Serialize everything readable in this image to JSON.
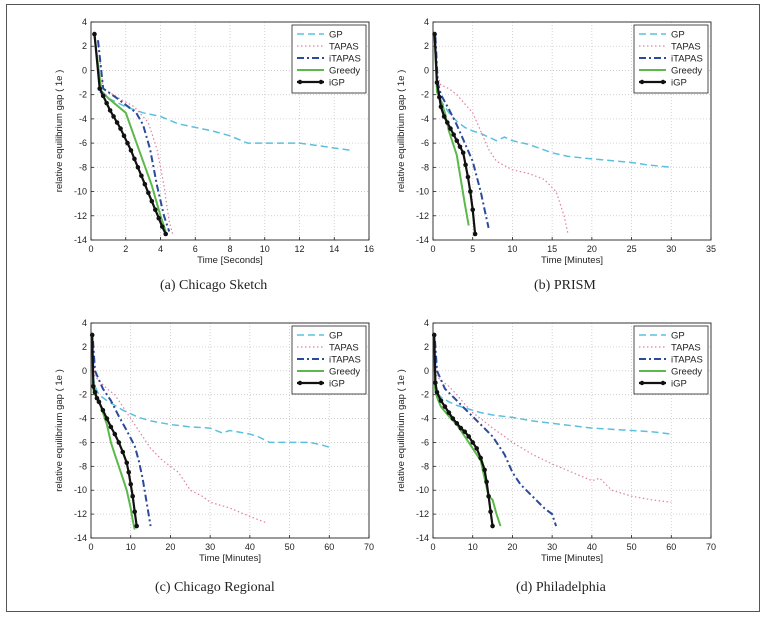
{
  "colors": {
    "GP": "#5bc0de",
    "TAPAS": "#e27fa0",
    "iTAPAS": "#2a4a9c",
    "Greedy": "#5cb84a",
    "iGP": "#111111"
  },
  "chart_data": [
    {
      "type": "line",
      "caption": "(a)  Chicago Sketch",
      "xlabel": "Time [Seconds]",
      "ylabel": "relative equilibrium gap ( 1e )",
      "xlim": [
        0,
        16
      ],
      "ylim": [
        -14,
        4
      ],
      "xticks": [
        0,
        2,
        4,
        6,
        8,
        10,
        12,
        14,
        16
      ],
      "yticks": [
        4,
        2,
        0,
        -2,
        -4,
        -6,
        -8,
        -10,
        -12,
        -14
      ],
      "grid": true,
      "legend_position": "top-right",
      "series": [
        {
          "name": "GP",
          "x": [
            0.5,
            0.8,
            1,
            2,
            3,
            4,
            5,
            6,
            7,
            8,
            9,
            10,
            11,
            12,
            13,
            14,
            15
          ],
          "y": [
            -1.8,
            -2.0,
            -2.3,
            -3.0,
            -3.5,
            -3.8,
            -4.4,
            -4.7,
            -5.0,
            -5.4,
            -6.0,
            -6.0,
            -6.0,
            -6.0,
            -6.2,
            -6.4,
            -6.6
          ]
        },
        {
          "name": "TAPAS",
          "x": [
            0.4,
            0.7,
            1.5,
            2.5,
            3.3,
            3.8,
            4.2,
            4.5,
            4.7
          ],
          "y": [
            2.3,
            -1.5,
            -2.2,
            -3.0,
            -4.3,
            -6.5,
            -9.5,
            -12.5,
            -13.5
          ]
        },
        {
          "name": "iTAPAS",
          "x": [
            0.4,
            0.7,
            1.5,
            2.6,
            3.0,
            3.4,
            3.8,
            4.2,
            4.5
          ],
          "y": [
            2.5,
            -1.5,
            -2.3,
            -3.5,
            -4.5,
            -6.5,
            -9.5,
            -12.0,
            -13.3
          ]
        },
        {
          "name": "Greedy",
          "x": [
            0.2,
            0.6,
            1.0,
            2.0,
            2.5,
            3.0,
            3.5,
            4.0,
            4.3
          ],
          "y": [
            2.8,
            -1.7,
            -2.3,
            -3.5,
            -5.5,
            -7.5,
            -9.5,
            -12.0,
            -13.3
          ]
        },
        {
          "name": "iGP",
          "x": [
            0.2,
            0.5,
            0.7,
            0.9,
            1.1,
            1.3,
            1.5,
            1.7,
            1.9,
            2.1,
            2.3,
            2.5,
            2.7,
            2.9,
            3.1,
            3.3,
            3.5,
            3.7,
            3.9,
            4.1,
            4.3
          ],
          "y": [
            3.0,
            -1.5,
            -2.1,
            -2.7,
            -3.3,
            -3.8,
            -4.3,
            -4.8,
            -5.4,
            -6.0,
            -6.6,
            -7.3,
            -8.0,
            -8.7,
            -9.4,
            -10.1,
            -10.8,
            -11.5,
            -12.2,
            -12.9,
            -13.5
          ],
          "markers": true
        }
      ]
    },
    {
      "type": "line",
      "caption": "(b)  PRISM",
      "xlabel": "Time [Minutes]",
      "ylabel": "relative equilibrium gap ( 1e )",
      "xlim": [
        0,
        35
      ],
      "ylim": [
        -14,
        4
      ],
      "xticks": [
        0,
        5,
        10,
        15,
        20,
        25,
        30,
        35
      ],
      "yticks": [
        4,
        2,
        0,
        -2,
        -4,
        -6,
        -8,
        -10,
        -12,
        -14
      ],
      "grid": true,
      "legend_position": "top-right",
      "series": [
        {
          "name": "GP",
          "x": [
            0.5,
            1,
            2,
            3,
            4,
            5,
            6,
            7,
            8,
            9,
            10,
            12,
            15,
            17,
            20,
            25,
            27,
            30
          ],
          "y": [
            -1.5,
            -2.5,
            -3.5,
            -4.2,
            -4.7,
            -5.0,
            -5.2,
            -5.5,
            -5.8,
            -5.5,
            -5.8,
            -6.1,
            -6.8,
            -7.1,
            -7.3,
            -7.6,
            -7.8,
            -8.0
          ]
        },
        {
          "name": "TAPAS",
          "x": [
            0.3,
            0.6,
            1,
            2,
            3,
            5,
            6,
            7,
            8,
            10,
            12,
            14,
            15.5,
            16.5,
            17
          ],
          "y": [
            2.5,
            -0.5,
            -1.2,
            -1.5,
            -2.0,
            -3.5,
            -5.0,
            -6.5,
            -7.5,
            -8.2,
            -8.5,
            -9.0,
            -10.0,
            -12.0,
            -13.5
          ]
        },
        {
          "name": "iTAPAS",
          "x": [
            0.3,
            0.6,
            1,
            2,
            3,
            4,
            5,
            6,
            6.5,
            7
          ],
          "y": [
            2.8,
            -1.0,
            -2.0,
            -3.2,
            -4.5,
            -6.0,
            -7.5,
            -10.0,
            -11.5,
            -13.0
          ]
        },
        {
          "name": "Greedy",
          "x": [
            0.2,
            0.5,
            1,
            1.5,
            2,
            3,
            3.5,
            4,
            4.5
          ],
          "y": [
            3.0,
            -1.8,
            -2.5,
            -3.5,
            -5.0,
            -7.0,
            -9.0,
            -11.0,
            -12.8
          ]
        },
        {
          "name": "iGP",
          "x": [
            0.2,
            0.5,
            0.8,
            1.0,
            1.4,
            1.8,
            2.2,
            2.6,
            3.0,
            3.4,
            3.8,
            4.1,
            4.4,
            4.7,
            5.0,
            5.3
          ],
          "y": [
            3.0,
            -1.0,
            -2.2,
            -3.0,
            -3.8,
            -4.3,
            -4.8,
            -5.3,
            -5.8,
            -6.3,
            -6.8,
            -7.8,
            -8.8,
            -10.0,
            -11.5,
            -13.5
          ],
          "markers": true
        }
      ]
    },
    {
      "type": "line",
      "caption": "(c)  Chicago Regional",
      "xlabel": "Time [Minutes]",
      "ylabel": "relative equilibrium gap ( 1e )",
      "xlim": [
        0,
        70
      ],
      "ylim": [
        -14,
        4
      ],
      "xticks": [
        0,
        10,
        20,
        30,
        40,
        50,
        60,
        70
      ],
      "yticks": [
        4,
        2,
        0,
        -2,
        -4,
        -6,
        -8,
        -10,
        -12,
        -14
      ],
      "grid": true,
      "legend_position": "top-right",
      "series": [
        {
          "name": "GP",
          "x": [
            0.5,
            1,
            2,
            4,
            6,
            8,
            10,
            12,
            15,
            20,
            25,
            30,
            33,
            35,
            40,
            42,
            45,
            50,
            55,
            58,
            60
          ],
          "y": [
            -0.5,
            -1.3,
            -2.0,
            -2.5,
            -2.9,
            -3.3,
            -3.6,
            -3.9,
            -4.2,
            -4.5,
            -4.7,
            -4.8,
            -5.2,
            -5.0,
            -5.3,
            -5.5,
            -6.0,
            -6.0,
            -6.0,
            -6.2,
            -6.4
          ]
        },
        {
          "name": "TAPAS",
          "x": [
            0.5,
            1,
            2,
            4,
            6,
            8,
            10,
            12,
            15,
            18,
            20,
            22,
            25,
            28,
            30,
            35,
            40,
            44
          ],
          "y": [
            2.0,
            -0.5,
            -0.8,
            -1.5,
            -2.0,
            -3.0,
            -4.0,
            -5.0,
            -6.5,
            -7.5,
            -8.0,
            -8.5,
            -10.0,
            -10.5,
            -11.0,
            -11.5,
            -12.2,
            -12.7
          ]
        },
        {
          "name": "iTAPAS",
          "x": [
            0.5,
            1,
            3,
            5,
            7,
            9,
            11,
            12,
            13,
            14,
            15
          ],
          "y": [
            2.5,
            0.0,
            -1.5,
            -2.5,
            -3.8,
            -5.0,
            -6.3,
            -7.5,
            -9.0,
            -11.0,
            -13.0
          ]
        },
        {
          "name": "Greedy",
          "x": [
            0.2,
            0.5,
            1,
            2,
            3,
            4,
            5,
            6,
            7,
            8,
            9,
            10,
            10.5,
            11
          ],
          "y": [
            3.0,
            -1.5,
            -2.0,
            -2.5,
            -3.5,
            -4.5,
            -6.0,
            -7.0,
            -8.0,
            -9.0,
            -10.0,
            -11.5,
            -12.5,
            -13.3
          ]
        },
        {
          "name": "iGP",
          "x": [
            0.3,
            0.6,
            1,
            1.5,
            2,
            3,
            4,
            5,
            6,
            7,
            8,
            9,
            9.5,
            10,
            10.5,
            11,
            11.5
          ],
          "y": [
            3.0,
            -1.3,
            -1.8,
            -2.3,
            -2.6,
            -3.3,
            -4.0,
            -4.7,
            -5.3,
            -6.0,
            -6.8,
            -7.7,
            -8.5,
            -9.5,
            -10.5,
            -11.8,
            -13.0
          ],
          "markers": true
        }
      ]
    },
    {
      "type": "line",
      "caption": "(d)  Philadelphia",
      "xlabel": "Time [Minutes]",
      "ylabel": "relative equilibrium gap ( 1e )",
      "xlim": [
        0,
        70
      ],
      "ylim": [
        -14,
        4
      ],
      "xticks": [
        0,
        10,
        20,
        30,
        40,
        50,
        60,
        70
      ],
      "yticks": [
        4,
        2,
        0,
        -2,
        -4,
        -6,
        -8,
        -10,
        -12,
        -14
      ],
      "grid": true,
      "legend_position": "top-right",
      "series": [
        {
          "name": "GP",
          "x": [
            0.5,
            1,
            2,
            4,
            6,
            8,
            10,
            12,
            15,
            20,
            25,
            30,
            35,
            40,
            45,
            50,
            55,
            60
          ],
          "y": [
            -1.0,
            -1.8,
            -2.2,
            -2.6,
            -2.9,
            -3.1,
            -3.3,
            -3.5,
            -3.7,
            -3.9,
            -4.2,
            -4.4,
            -4.6,
            -4.8,
            -4.9,
            -5.0,
            -5.1,
            -5.3
          ]
        },
        {
          "name": "TAPAS",
          "x": [
            0.5,
            1,
            2,
            4,
            6,
            8,
            10,
            12,
            15,
            18,
            20,
            25,
            30,
            35,
            40,
            42,
            45,
            50,
            55,
            60
          ],
          "y": [
            2.0,
            -0.5,
            -0.8,
            -1.3,
            -2.0,
            -2.8,
            -3.5,
            -4.0,
            -4.8,
            -5.5,
            -6.0,
            -7.0,
            -7.8,
            -8.5,
            -9.2,
            -9.0,
            -10.0,
            -10.5,
            -10.8,
            -11.0
          ]
        },
        {
          "name": "iTAPAS",
          "x": [
            0.5,
            1,
            3,
            6,
            9,
            12,
            15,
            18,
            20,
            22,
            25,
            28,
            30,
            31
          ],
          "y": [
            2.5,
            0.0,
            -1.5,
            -2.5,
            -3.5,
            -4.5,
            -5.5,
            -7.0,
            -8.5,
            -9.5,
            -10.5,
            -11.5,
            -12.0,
            -13.0
          ]
        },
        {
          "name": "Greedy",
          "x": [
            0.2,
            0.5,
            1,
            2,
            4,
            6,
            8,
            10,
            12,
            13,
            14,
            15,
            16,
            17
          ],
          "y": [
            3.0,
            -1.5,
            -2.2,
            -3.0,
            -3.8,
            -4.5,
            -5.5,
            -6.5,
            -7.5,
            -9.0,
            -10.5,
            -10.8,
            -12.0,
            -13.0
          ]
        },
        {
          "name": "iGP",
          "x": [
            0.3,
            0.6,
            1,
            2,
            3,
            4,
            5,
            6,
            7,
            8,
            9,
            10,
            11,
            12,
            13,
            13.5,
            14,
            14.5,
            15
          ],
          "y": [
            3.0,
            -1.0,
            -1.8,
            -2.5,
            -3.0,
            -3.5,
            -4.0,
            -4.4,
            -4.8,
            -5.1,
            -5.5,
            -6.0,
            -6.5,
            -7.3,
            -8.3,
            -9.3,
            -10.5,
            -11.8,
            -13.0
          ],
          "markers": true
        }
      ]
    }
  ]
}
